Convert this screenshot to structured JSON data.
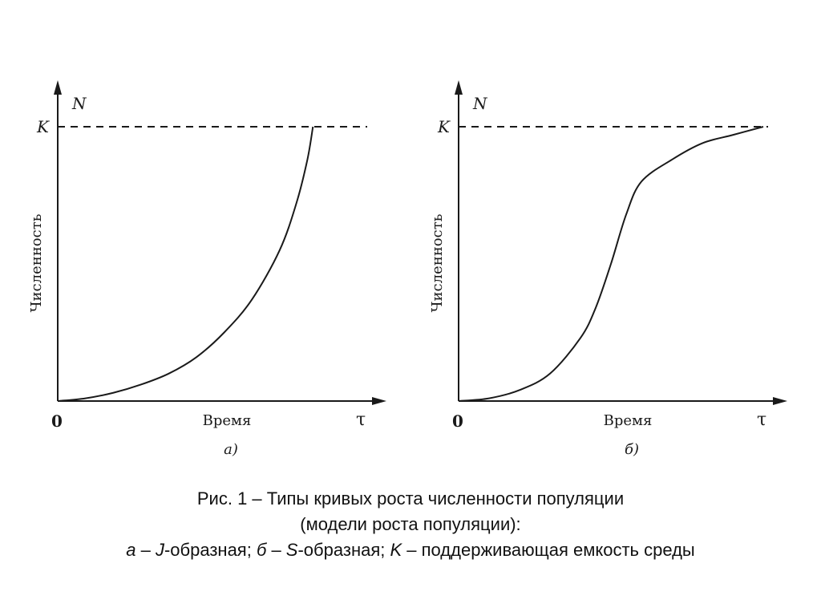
{
  "chart_data": [
    {
      "type": "line",
      "panel_label": "а)",
      "y_axis_symbol": "N",
      "y_axis_title": "Численность",
      "x_axis_title": "Время",
      "x_axis_symbol": "τ",
      "origin_label": "0",
      "capacity_label": "K",
      "capacity_value": 1.0,
      "xlim": [
        0,
        1
      ],
      "ylim": [
        0,
        1
      ],
      "series": [
        {
          "curve": "J",
          "x": [
            0,
            0.1,
            0.2,
            0.3,
            0.4,
            0.5,
            0.6,
            0.7,
            0.8,
            0.86,
            0.9,
            0.92
          ],
          "y": [
            0,
            0.01,
            0.03,
            0.06,
            0.1,
            0.16,
            0.25,
            0.37,
            0.55,
            0.72,
            0.88,
            1.0
          ]
        }
      ]
    },
    {
      "type": "line",
      "panel_label": "б)",
      "y_axis_symbol": "N",
      "y_axis_title": "Численность",
      "x_axis_title": "Время",
      "x_axis_symbol": "τ",
      "origin_label": "0",
      "capacity_label": "K",
      "capacity_value": 1.0,
      "xlim": [
        0,
        1
      ],
      "ylim": [
        0,
        1
      ],
      "series": [
        {
          "curve": "S",
          "x": [
            0,
            0.1,
            0.2,
            0.3,
            0.4,
            0.45,
            0.5,
            0.55,
            0.6,
            0.7,
            0.8,
            0.9,
            1.0
          ],
          "y": [
            0,
            0.01,
            0.04,
            0.1,
            0.23,
            0.34,
            0.5,
            0.68,
            0.8,
            0.88,
            0.94,
            0.97,
            1.0
          ]
        }
      ]
    }
  ],
  "caption": {
    "line1": "Рис. 1 – Типы кривых роста численности популяции",
    "line2": "(модели роста популяции):",
    "line3_a": "а",
    "line3_dash1": " – ",
    "line3_j": "J",
    "line3_j_text": "-образная; ",
    "line3_b": "б",
    "line3_dash2": " – ",
    "line3_s": "S",
    "line3_s_text": "-образная; ",
    "line3_k": "K",
    "line3_dash3": " – ",
    "line3_k_text": "поддерживающая емкость среды"
  },
  "colors": {
    "ink": "#1a1a1a"
  }
}
